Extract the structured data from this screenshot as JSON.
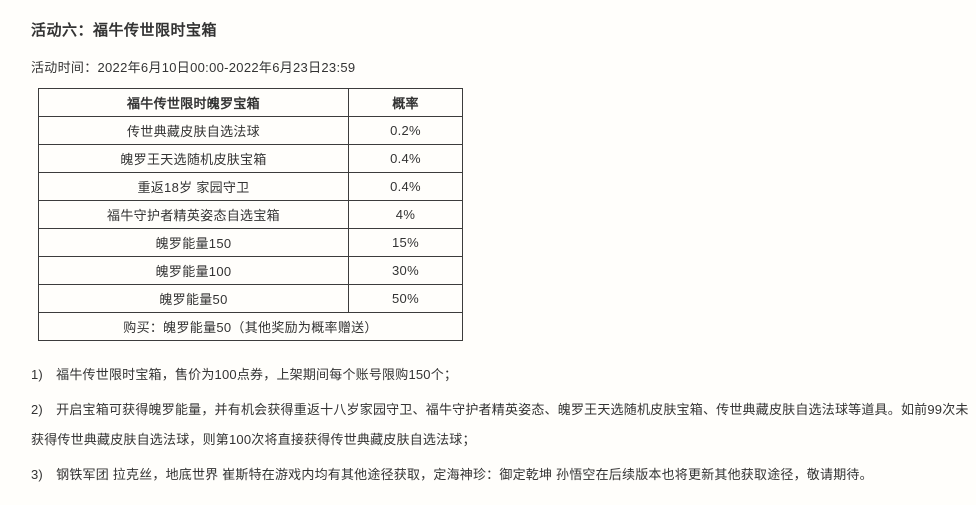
{
  "page": {
    "title": "活动六：福牛传世限时宝箱",
    "activity_time": "活动时间：2022年6月10日00:00-2022年6月23日23:59"
  },
  "table": {
    "headers": {
      "item": "福牛传世限时魄罗宝箱",
      "rate": "概率"
    },
    "rows": [
      {
        "item": "传世典藏皮肤自选法球",
        "rate": "0.2%"
      },
      {
        "item": "魄罗王天选随机皮肤宝箱",
        "rate": "0.4%"
      },
      {
        "item": "重返18岁 家园守卫",
        "rate": "0.4%"
      },
      {
        "item": "福牛守护者精英姿态自选宝箱",
        "rate": "4%"
      },
      {
        "item": "魄罗能量150",
        "rate": "15%"
      },
      {
        "item": "魄罗能量100",
        "rate": "30%"
      },
      {
        "item": "魄罗能量50",
        "rate": "50%"
      }
    ],
    "footer": "购买：魄罗能量50（其他奖励为概率赠送）"
  },
  "notes": [
    {
      "lines": [
        "1)　福牛传世限时宝箱，售价为100点券，上架期间每个账号限购150个；"
      ]
    },
    {
      "lines": [
        "2)　开启宝箱可获得魄罗能量，并有机会获得重返十八岁家园守卫、福牛守护者精英姿态、魄罗王天选随机皮肤宝箱、传世典藏皮肤自选法球等道具。如前99次未",
        "获得传世典藏皮肤自选法球，则第100次将直接获得传世典藏皮肤自选法球；"
      ]
    },
    {
      "lines": [
        "3)　钢铁军团 拉克丝，地底世界 崔斯特在游戏内均有其他途径获取，定海神珍：御定乾坤 孙悟空在后续版本也将更新其他获取途径，敬请期待。"
      ]
    }
  ],
  "colors": {
    "text": "#333333",
    "border": "#3c3c3c",
    "background": "#fffefb"
  }
}
